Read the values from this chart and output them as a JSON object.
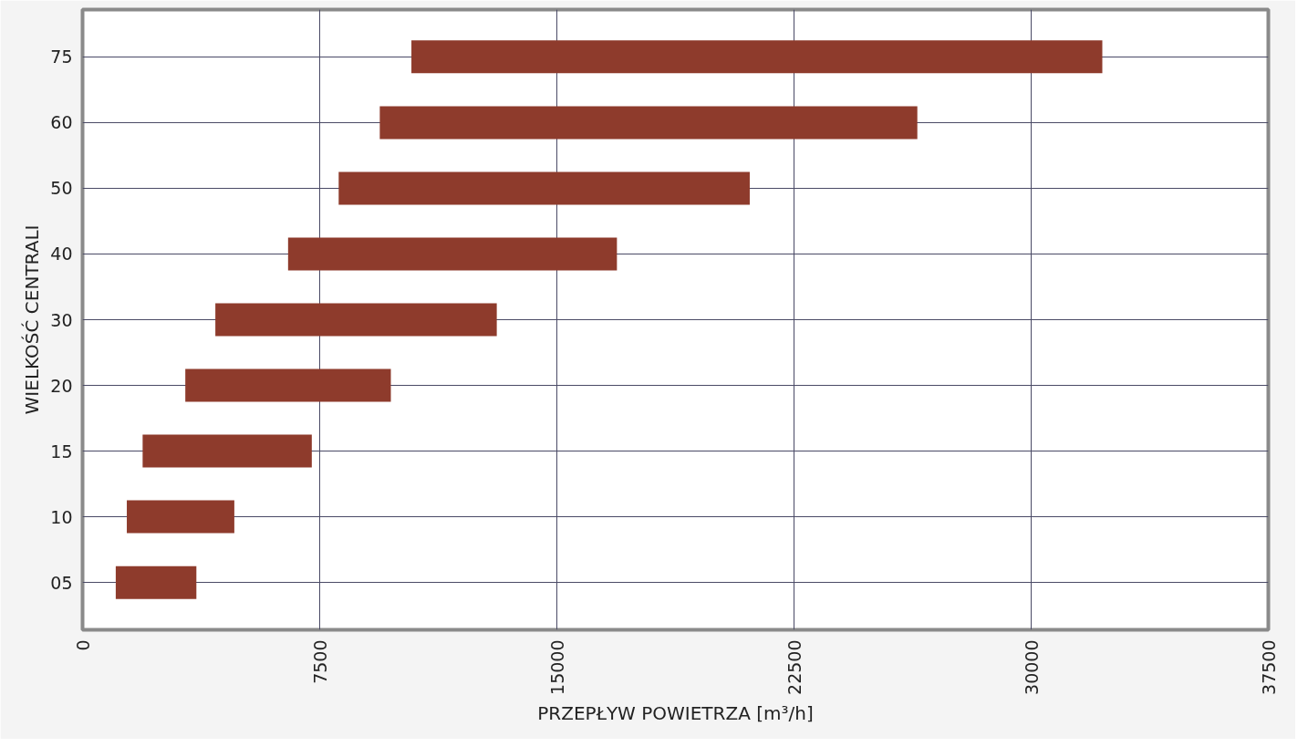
{
  "chart_data": {
    "type": "bar",
    "orientation": "horizontal",
    "xlabel": "PRZEPŁYW POWIETRZA [m³/h]",
    "ylabel": "WIELKOŚĆ CENTRALI",
    "categories": [
      "75",
      "60",
      "50",
      "40",
      "30",
      "20",
      "15",
      "10",
      "05"
    ],
    "base": [
      10400,
      9400,
      8100,
      6500,
      4200,
      3250,
      1900,
      1400,
      1050
    ],
    "values": [
      21850,
      17000,
      13000,
      10400,
      8900,
      6500,
      5350,
      3400,
      2550
    ],
    "color": "#8e3b2c",
    "xlim": [
      0,
      37500
    ],
    "xticks": [
      0,
      7500,
      15000,
      22500,
      30000,
      37500
    ],
    "grid": true
  }
}
